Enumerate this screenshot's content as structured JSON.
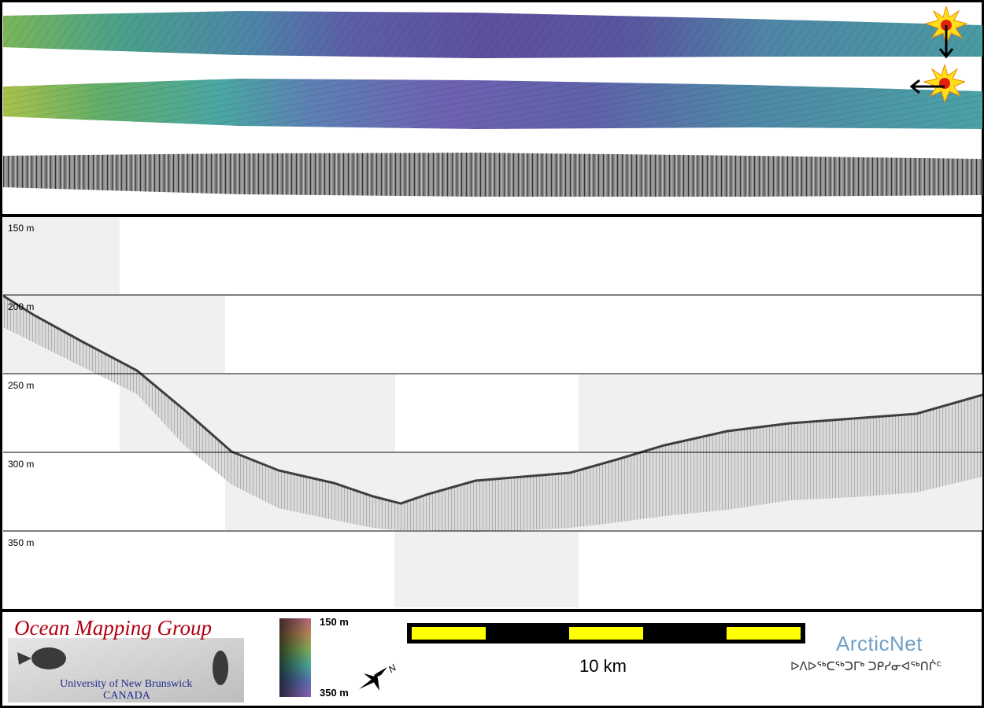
{
  "depth_labels": {
    "d150": "150 m",
    "d200": "200 m",
    "d250": "250 m",
    "d300": "300 m",
    "d350": "350 m"
  },
  "legend": {
    "colorbar_top": "150 m",
    "colorbar_bottom": "350 m",
    "scale": "10 km",
    "north": "N"
  },
  "logos": {
    "omg_title": "Ocean Mapping Group",
    "omg_line1": "University of New Brunswick",
    "omg_line2": "CANADA",
    "arctic_name": "ArcticNet",
    "arctic_syllabics": "ᐅᐱᐅᖅᑕᖅᑐᒥᒃ ᑐᑭᓯᓂᐊᖅᑎᒌᑦ"
  },
  "colors": {
    "scale_yellow": "#ffff00",
    "omg_red": "#b3000f",
    "arctic_blue": "#6f9ec6"
  }
}
